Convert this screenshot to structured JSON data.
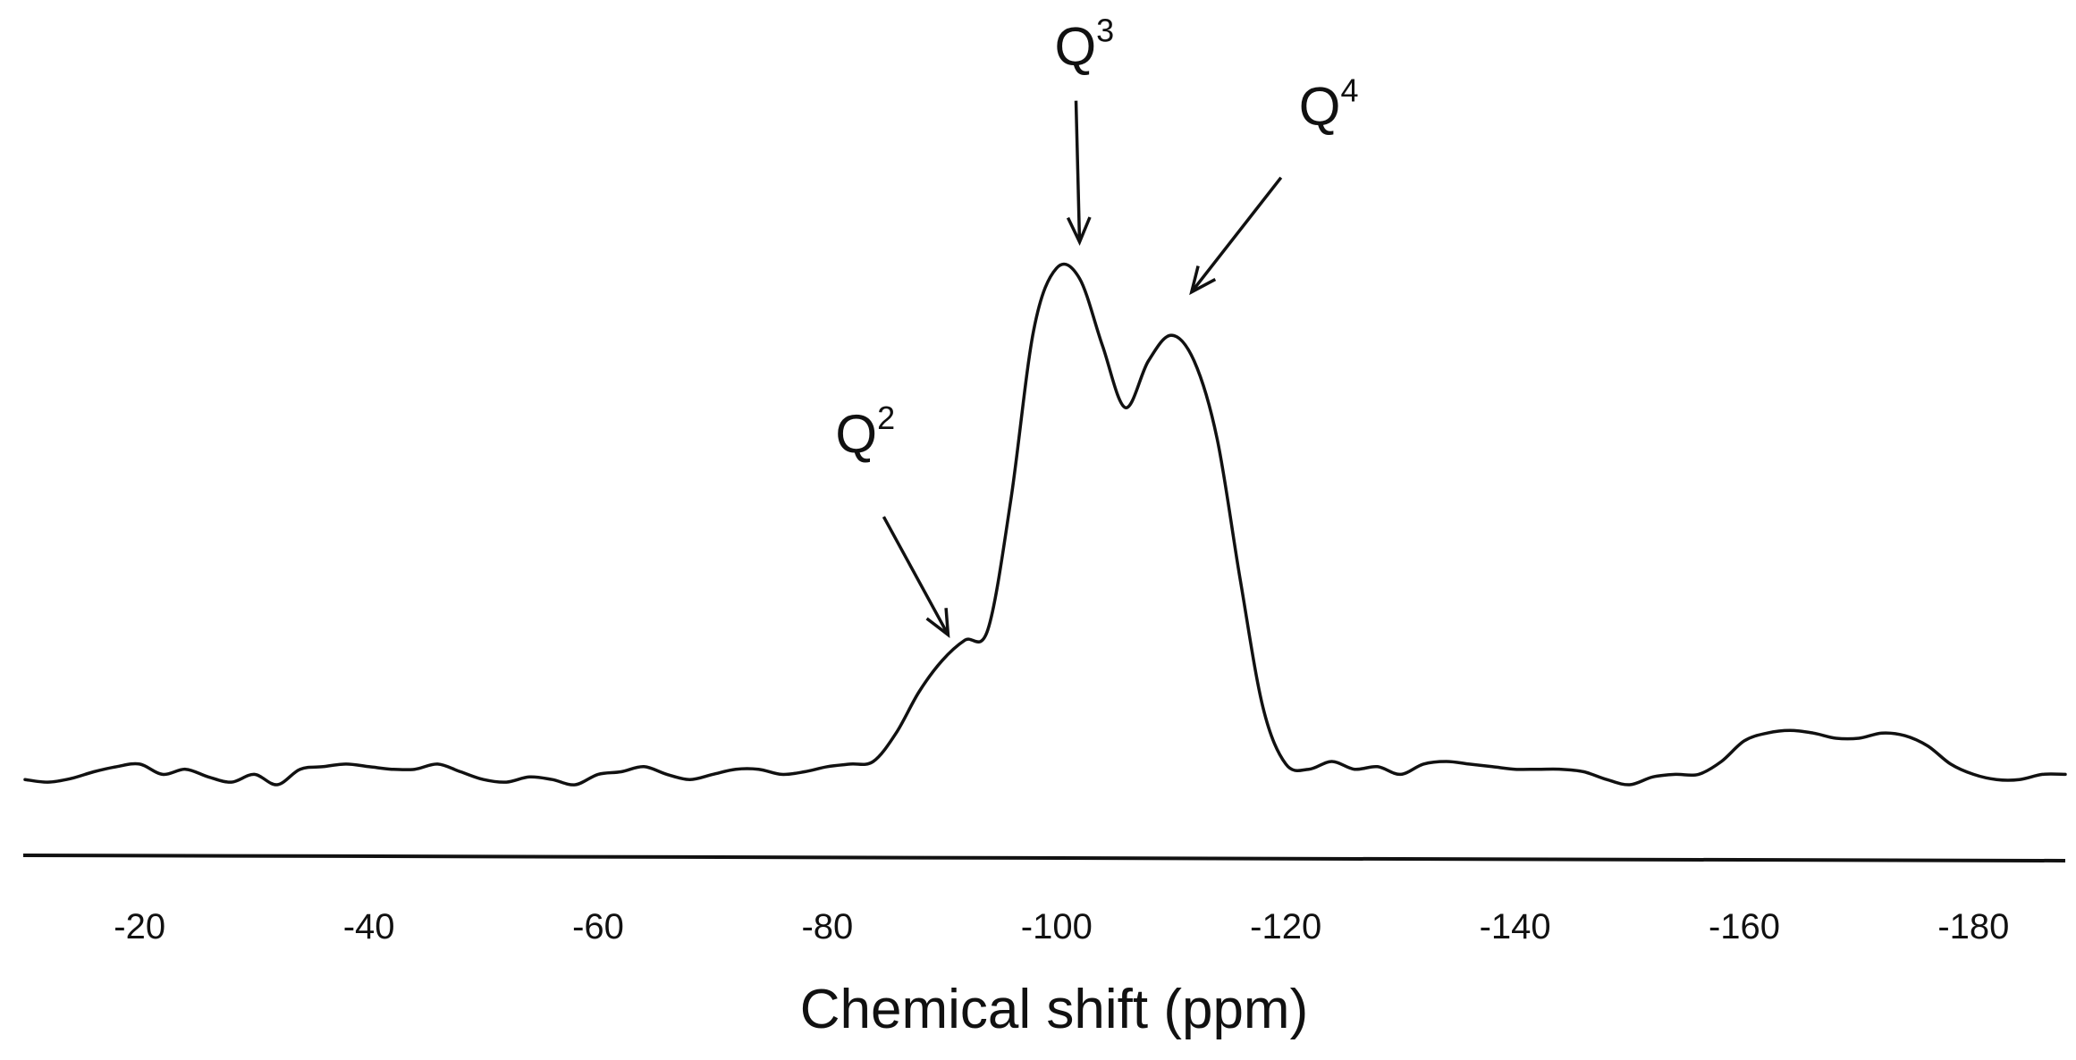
{
  "chart_data": {
    "type": "line",
    "title": "",
    "xlabel": "Chemical shift (ppm)",
    "ylabel": "",
    "xlim": [
      -10,
      -188
    ],
    "ylim": [
      0,
      1.1
    ],
    "x_reversed": true,
    "grid": false,
    "legend": "none",
    "xticks": [
      -20,
      -40,
      -60,
      -80,
      -100,
      -120,
      -140,
      -160,
      -180
    ],
    "xtick_labels": [
      "-20",
      "-40",
      "-60",
      "-80",
      "-100",
      "-120",
      "-140",
      "-160",
      "-180"
    ],
    "series": [
      {
        "color": "#111111",
        "x": [
          -10,
          -12,
          -14,
          -16,
          -18,
          -20,
          -22,
          -24,
          -26,
          -28,
          -30,
          -32,
          -34,
          -36,
          -38,
          -40,
          -42,
          -44,
          -46,
          -48,
          -50,
          -52,
          -54,
          -56,
          -58,
          -60,
          -62,
          -64,
          -66,
          -68,
          -70,
          -72,
          -74,
          -76,
          -78,
          -80,
          -82,
          -84,
          -86,
          -88,
          -90,
          -92,
          -94,
          -96,
          -98,
          -100,
          -102,
          -104,
          -106,
          -108,
          -110,
          -112,
          -114,
          -116,
          -118,
          -120,
          -122,
          -124,
          -126,
          -128,
          -130,
          -132,
          -134,
          -136,
          -138,
          -140,
          -142,
          -144,
          -146,
          -148,
          -150,
          -152,
          -154,
          -156,
          -158,
          -160,
          -162,
          -164,
          -166,
          -168,
          -170,
          -172,
          -174,
          -176,
          -178,
          -180,
          -182,
          -184,
          -186,
          -188
        ],
        "y": [
          0.01,
          0.005,
          0.012,
          0.025,
          0.035,
          0.04,
          0.02,
          0.03,
          0.015,
          0.005,
          0.02,
          0.0,
          0.03,
          0.035,
          0.04,
          0.035,
          0.03,
          0.03,
          0.04,
          0.025,
          0.01,
          0.005,
          0.015,
          0.01,
          0.0,
          0.02,
          0.025,
          0.035,
          0.02,
          0.01,
          0.02,
          0.03,
          0.03,
          0.02,
          0.025,
          0.035,
          0.04,
          0.045,
          0.1,
          0.18,
          0.24,
          0.28,
          0.3,
          0.55,
          0.88,
          1.0,
          0.98,
          0.85,
          0.73,
          0.82,
          0.87,
          0.82,
          0.67,
          0.4,
          0.15,
          0.04,
          0.03,
          0.045,
          0.03,
          0.035,
          0.02,
          0.04,
          0.045,
          0.04,
          0.035,
          0.03,
          0.03,
          0.03,
          0.025,
          0.01,
          0.0,
          0.015,
          0.02,
          0.02,
          0.045,
          0.085,
          0.1,
          0.105,
          0.1,
          0.09,
          0.09,
          0.1,
          0.095,
          0.075,
          0.04,
          0.02,
          0.01,
          0.01,
          0.02,
          0.02
        ]
      }
    ],
    "annotations": [
      {
        "main": "Q",
        "sup": "2",
        "x": -91,
        "y": 0.28
      },
      {
        "main": "Q",
        "sup": "3",
        "x": -102,
        "y": 1.03
      },
      {
        "main": "Q",
        "sup": "4",
        "x": -111,
        "y": 0.94
      }
    ]
  }
}
